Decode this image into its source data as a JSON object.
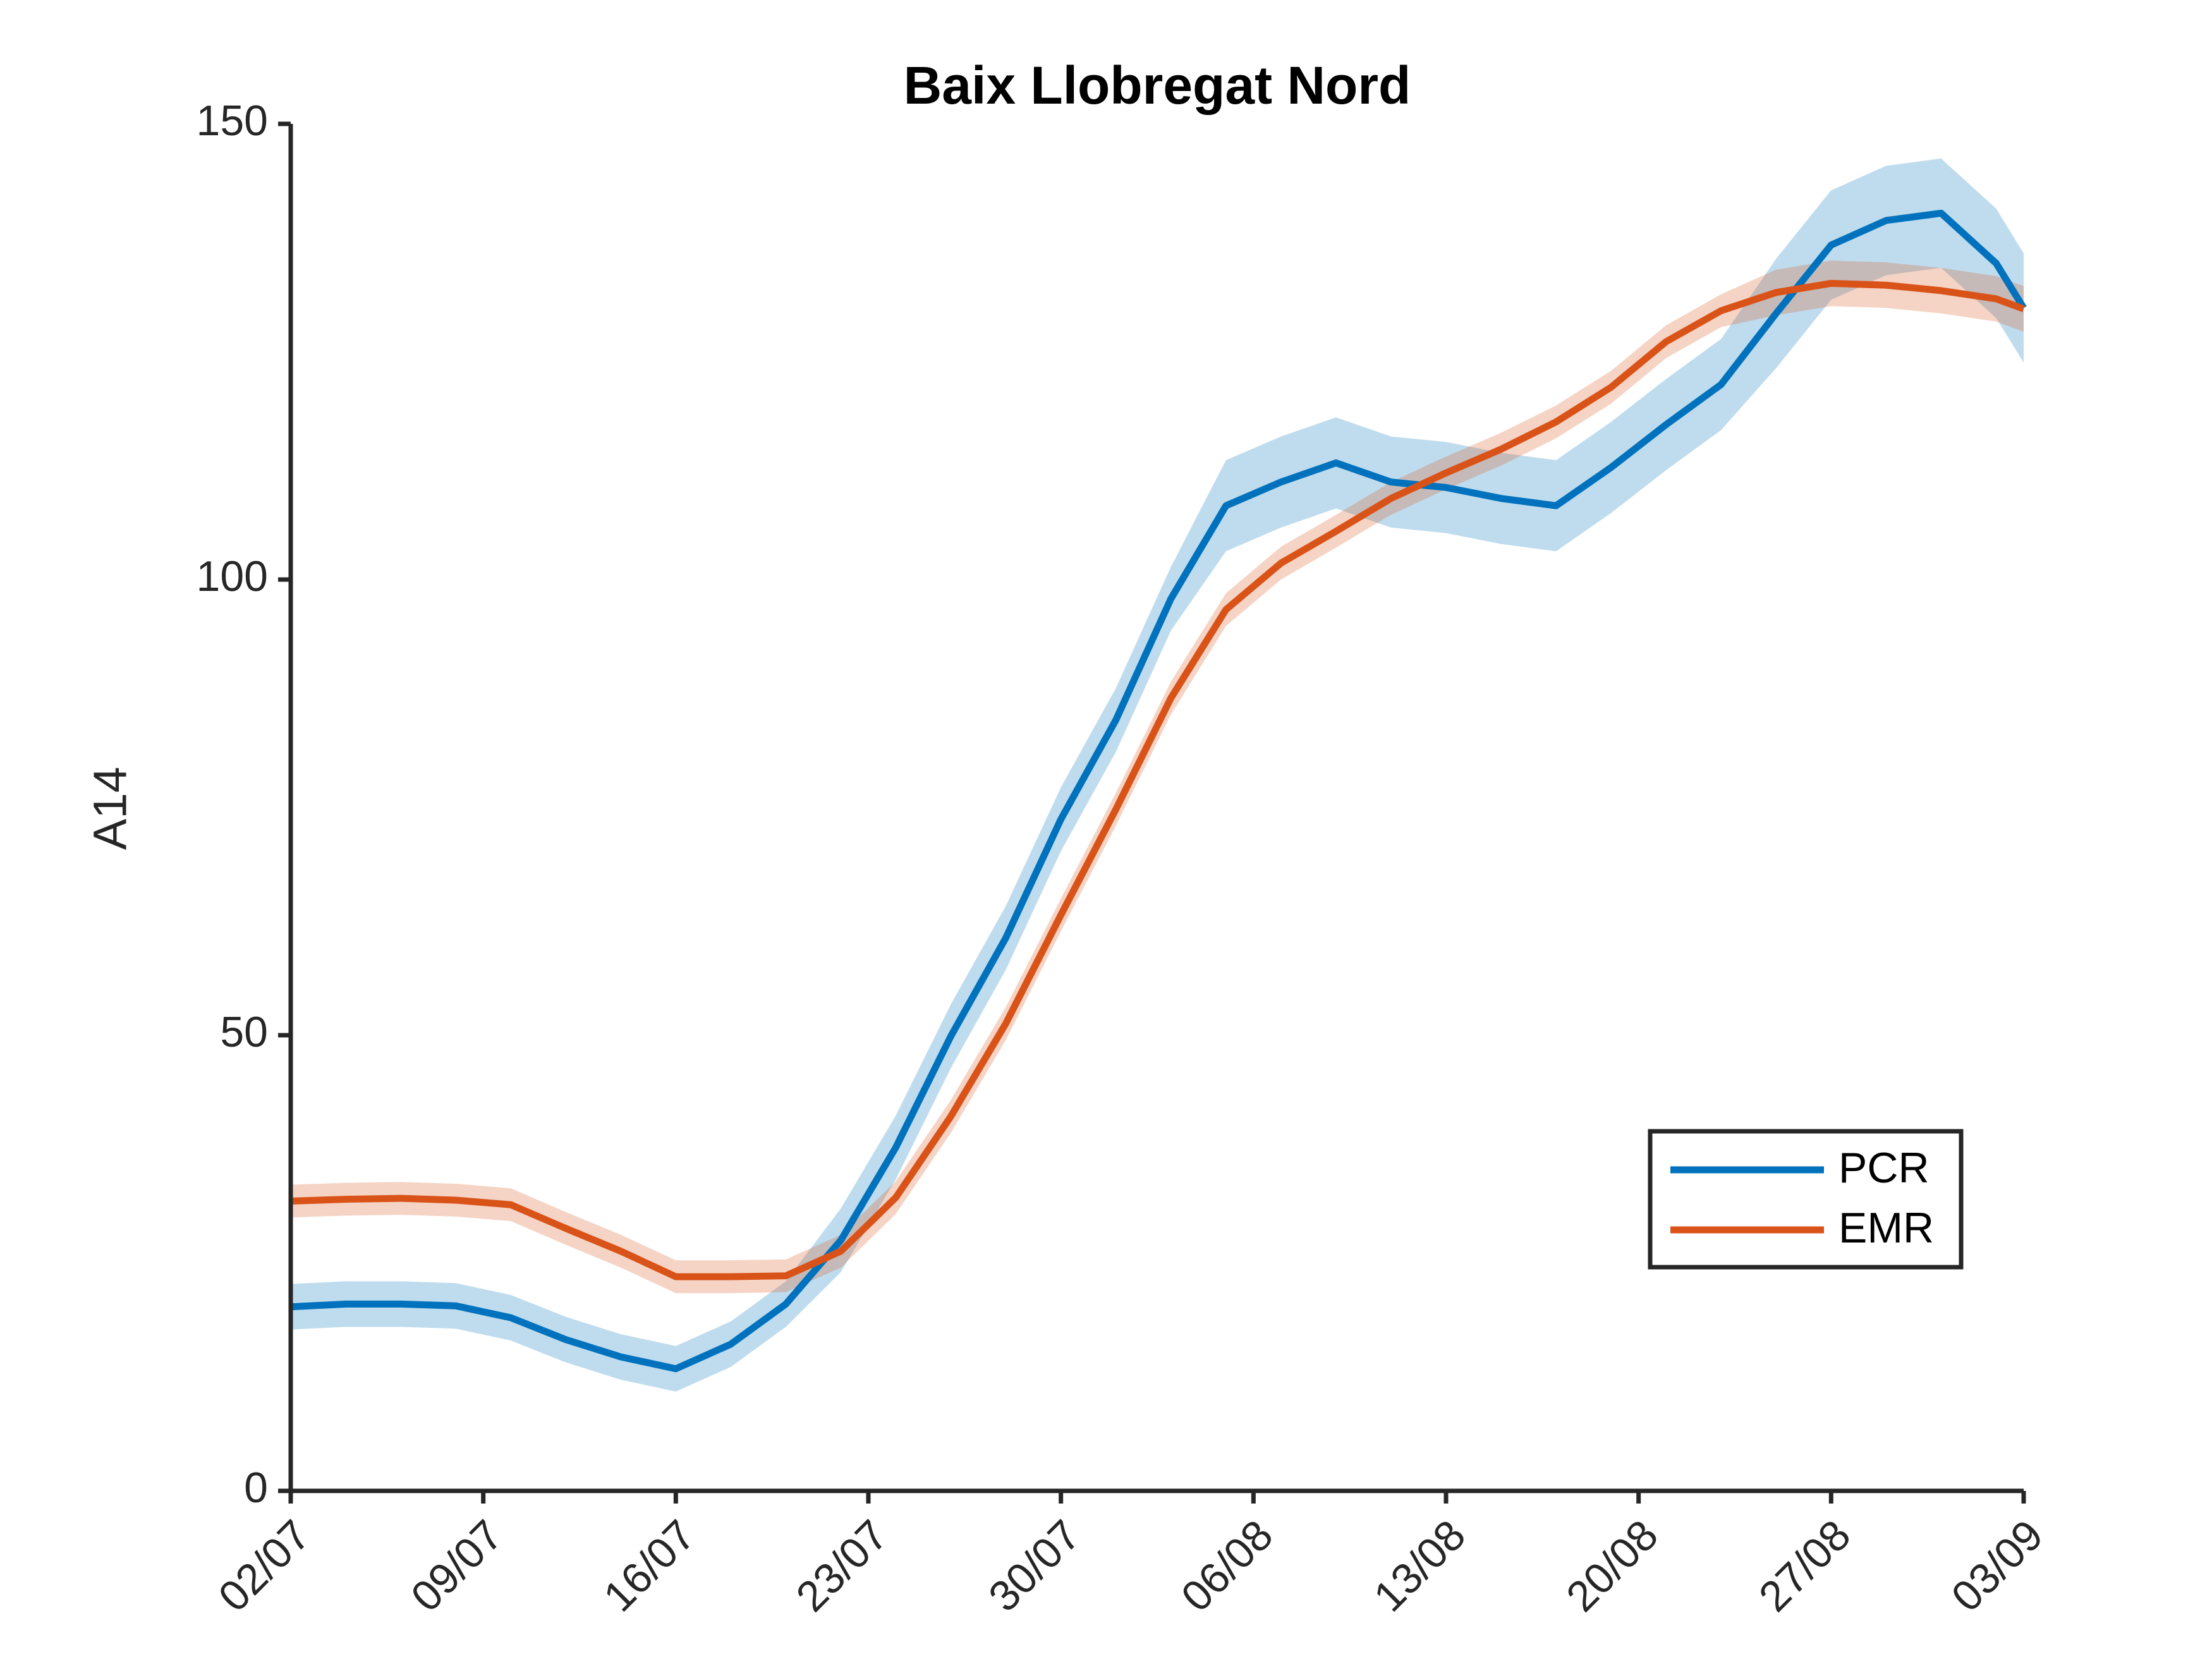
{
  "chart_data": {
    "type": "line",
    "title": "Baix Llobregat Nord",
    "y_label": "A14",
    "x": [
      0,
      2,
      4,
      6,
      8,
      10,
      12,
      14,
      16,
      18,
      20,
      22,
      24,
      26,
      28,
      30,
      32,
      34,
      36,
      38,
      40,
      42,
      44,
      46,
      48,
      50,
      52,
      54,
      56,
      58,
      60,
      62,
      63
    ],
    "series": [
      {
        "name": "PCR",
        "color": "#0072BD",
        "values": [
          20.2,
          20.5,
          20.5,
          20.3,
          19,
          16.6,
          14.7,
          13.4,
          16.1,
          20.5,
          27.5,
          37.7,
          49.9,
          60.7,
          73.7,
          84.6,
          97.9,
          108.1,
          110.7,
          112.8,
          110.7,
          110.1,
          108.9,
          108.1,
          112.3,
          117,
          121.4,
          129.2,
          136.7,
          139.4,
          140.2,
          134.7,
          129.8
        ],
        "lower": [
          17.7,
          18,
          18,
          17.8,
          16.5,
          14.1,
          12.2,
          10.9,
          13.6,
          18,
          24,
          34.2,
          46.4,
          57.2,
          70.2,
          81.1,
          94.4,
          103.1,
          105.7,
          107.8,
          105.7,
          105.1,
          103.9,
          103.1,
          107.3,
          112,
          116.4,
          123.2,
          130.7,
          133.4,
          134.2,
          128.7,
          123.8
        ],
        "upper": [
          22.7,
          23,
          23,
          22.8,
          21.5,
          19.1,
          17.2,
          15.9,
          18.6,
          23,
          31,
          41.2,
          53.4,
          64.2,
          77.2,
          88.1,
          101.4,
          113.1,
          115.7,
          117.8,
          115.7,
          115.1,
          113.9,
          113.1,
          117.3,
          122,
          126.4,
          135.2,
          142.7,
          145.4,
          146.2,
          140.7,
          135.8
        ]
      },
      {
        "name": "EMR",
        "color": "#D95319",
        "values": [
          31.8,
          32,
          32.1,
          31.9,
          31.4,
          28.8,
          26.3,
          23.5,
          23.5,
          23.6,
          26.3,
          32.2,
          41.1,
          51.3,
          63.2,
          74.8,
          87,
          96.7,
          101.8,
          105.3,
          108.9,
          111.7,
          114.3,
          117.3,
          121.1,
          126.1,
          129.5,
          131.5,
          132.5,
          132.3,
          131.7,
          130.8,
          129.7
        ],
        "lower": [
          30,
          30.2,
          30.3,
          30.1,
          29.6,
          27,
          24.5,
          21.7,
          21.7,
          21.8,
          24.5,
          30.4,
          39.3,
          49.5,
          61.4,
          73,
          85.2,
          94.9,
          100,
          103.5,
          107.1,
          109.9,
          112.5,
          115.5,
          119.3,
          124.3,
          127.7,
          129,
          130,
          129.8,
          129.2,
          128.3,
          127.2
        ],
        "upper": [
          33.6,
          33.8,
          33.9,
          33.7,
          33.2,
          30.6,
          28.1,
          25.3,
          25.3,
          25.4,
          28.1,
          34,
          42.9,
          53.1,
          65,
          76.6,
          88.8,
          98.5,
          103.6,
          107.1,
          110.7,
          113.5,
          116.1,
          119.1,
          122.9,
          127.9,
          131.3,
          134,
          135,
          134.8,
          134.2,
          133.3,
          132.2
        ]
      }
    ],
    "xlim": [
      0,
      63
    ],
    "xticks": [
      {
        "value": 0,
        "label": "02/07"
      },
      {
        "value": 7,
        "label": "09/07"
      },
      {
        "value": 14,
        "label": "16/07"
      },
      {
        "value": 21,
        "label": "23/07"
      },
      {
        "value": 28,
        "label": "30/07"
      },
      {
        "value": 35,
        "label": "06/08"
      },
      {
        "value": 42,
        "label": "13/08"
      },
      {
        "value": 49,
        "label": "20/08"
      },
      {
        "value": 56,
        "label": "27/08"
      },
      {
        "value": 63,
        "label": "03/09"
      }
    ],
    "ylim": [
      0,
      150
    ],
    "yticks": [
      0,
      50,
      100,
      150
    ],
    "grid": false,
    "legend": "lower right",
    "band_opacity": 0.25
  }
}
